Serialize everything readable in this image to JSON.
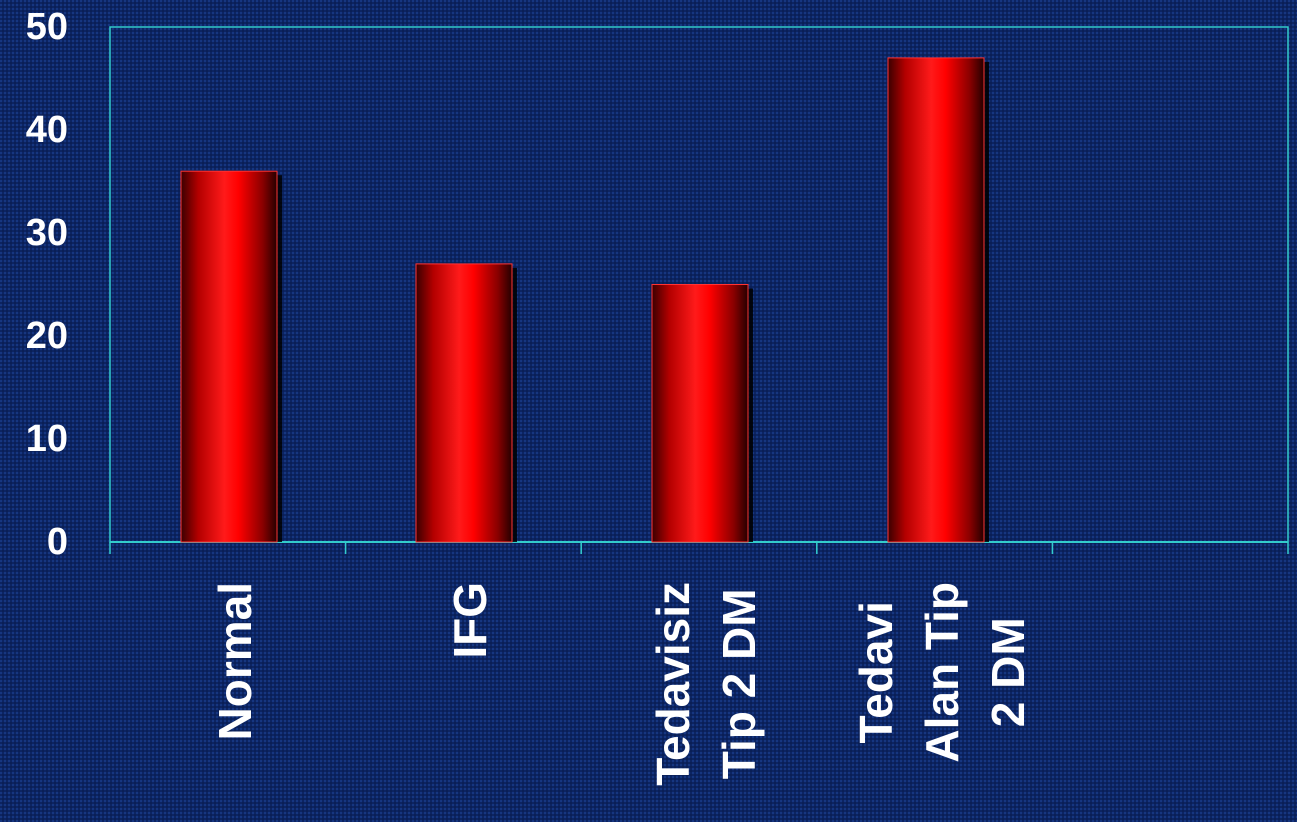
{
  "colors": {
    "background": "#0c2462",
    "plot_border": "#33cccc",
    "bar": "#ff0000",
    "text": "#ffffff"
  },
  "chart_data": {
    "type": "bar",
    "categories": [
      [
        "Normal"
      ],
      [
        "IFG"
      ],
      [
        "Tedavisiz",
        "Tip 2 DM"
      ],
      [
        "Tedavi",
        "Alan Tip",
        "2 DM"
      ],
      []
    ],
    "values": [
      36,
      27,
      25,
      47,
      null
    ],
    "ylim": [
      0,
      50
    ],
    "yticks": [
      "0",
      "10",
      "20",
      "30",
      "40",
      "50"
    ],
    "title": "",
    "xlabel": "",
    "ylabel": "",
    "grid": false,
    "legend": "none"
  }
}
